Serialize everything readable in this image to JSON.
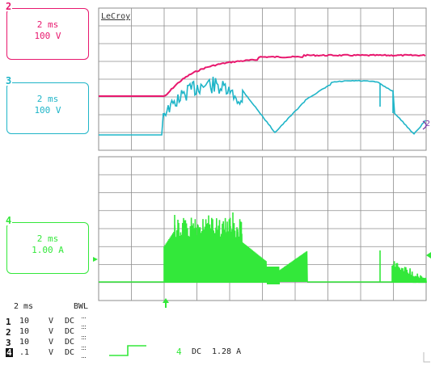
{
  "brand": "LeCroy",
  "colors": {
    "ch2": "#e8186e",
    "ch3": "#1fb5c8",
    "ch4": "#33e83a",
    "grid": "#8e8e8e"
  },
  "channels": {
    "ch2": {
      "num": "2",
      "timebase": "2 ms",
      "scale": "100 V"
    },
    "ch3": {
      "num": "3",
      "timebase": "2 ms",
      "scale": "100 V"
    },
    "ch4": {
      "num": "4",
      "timebase": "2 ms",
      "scale": "1.00 A"
    }
  },
  "right_marker": "2",
  "status": {
    "timebase": "2 ms",
    "bwl": "BWL",
    "rows": [
      {
        "ch": "1",
        "scale": "10",
        "unit": "V",
        "coupling": "DC"
      },
      {
        "ch": "2",
        "scale": "10",
        "unit": "V",
        "coupling": "DC"
      },
      {
        "ch": "3",
        "scale": "10",
        "unit": "V",
        "coupling": "DC"
      },
      {
        "ch": "4",
        "scale": ".1",
        "unit": "V",
        "coupling": "DC"
      }
    ],
    "trigger_channel": "4",
    "trigger_coupling": "DC",
    "trigger_level": "1.28 A"
  }
}
